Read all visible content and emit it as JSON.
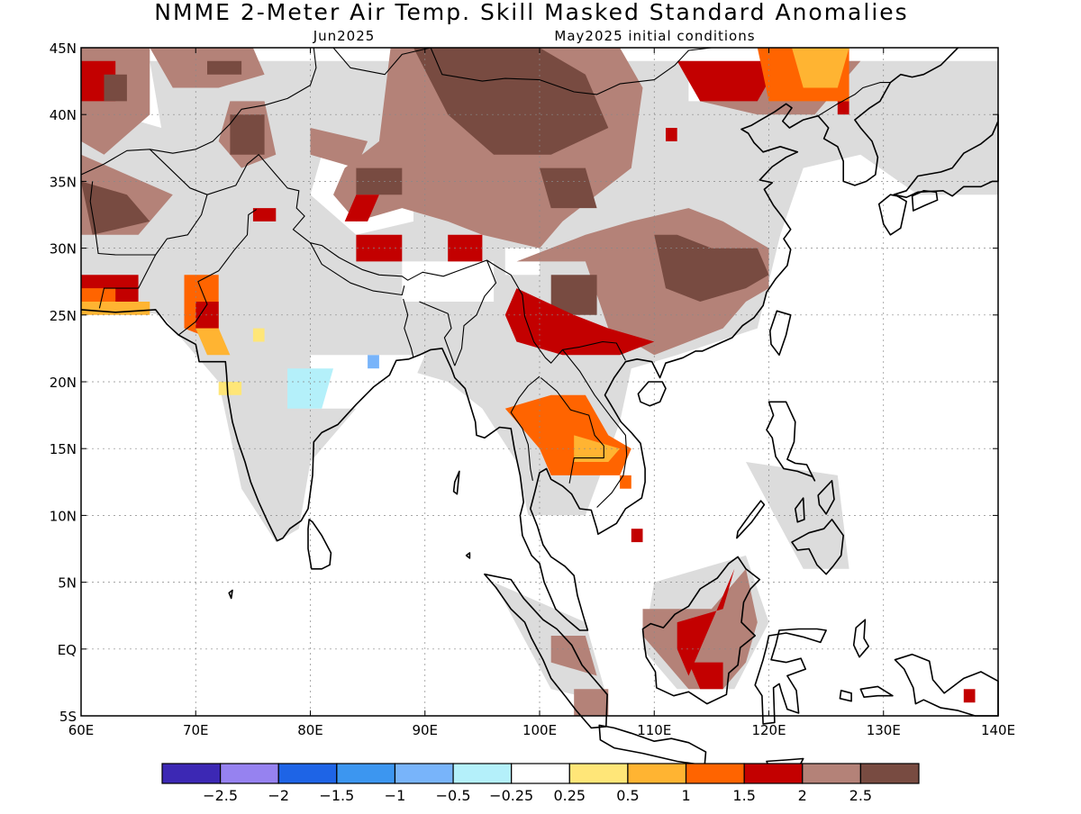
{
  "map": {
    "title": "NMME 2-Meter Air Temp. Skill Masked Standard Anomalies",
    "valid_month": "Jun2025",
    "initial_conditions": "May2025 initial conditions",
    "lon_range": [
      60,
      140
    ],
    "lat_range": [
      -5,
      45
    ],
    "lon_ticks": [
      "60E",
      "70E",
      "80E",
      "90E",
      "100E",
      "110E",
      "120E",
      "130E",
      "140E"
    ],
    "lat_ticks": [
      "45N",
      "40N",
      "35N",
      "30N",
      "25N",
      "20N",
      "15N",
      "10N",
      "5N",
      "EQ",
      "5S"
    ],
    "colorbar": {
      "colors": [
        "#3c28b4",
        "#9682f0",
        "#1e64e6",
        "#3c96f0",
        "#78b4fa",
        "#b4f0fa",
        "#ffffff",
        "#ffe678",
        "#ffb432",
        "#ff6400",
        "#c30000",
        "#b48278",
        "#784b41"
      ],
      "labels": [
        "−2.5",
        "−2",
        "−1.5",
        "−1",
        "−0.5",
        "−0.25",
        "0.25",
        "0.5",
        "1",
        "1.5",
        "2",
        "2.5"
      ]
    }
  }
}
